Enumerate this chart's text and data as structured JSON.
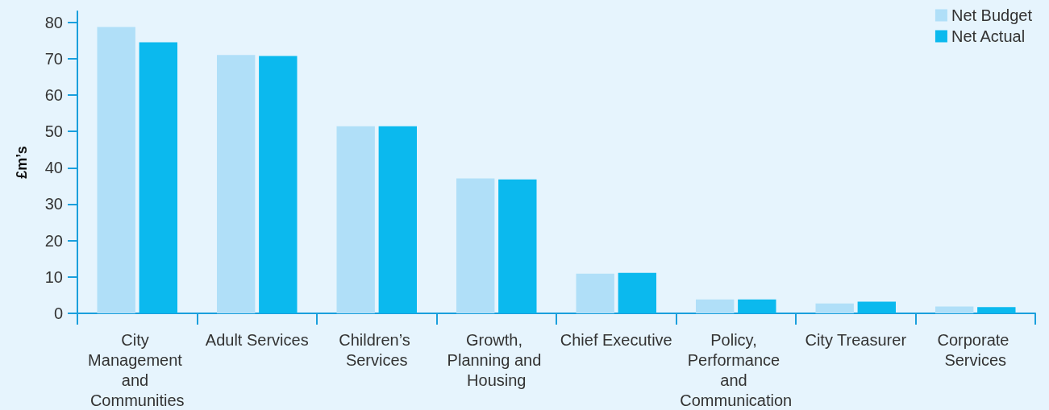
{
  "chart_data": {
    "type": "bar",
    "ylabel": "£m’s",
    "categories": [
      "City Management and Communities",
      "Adult Services",
      "Children’s Services",
      "Growth, Planning and Housing",
      "Chief Executive",
      "Policy, Performance and Communication",
      "City Treasurer",
      "Corporate Services"
    ],
    "series": [
      {
        "name": "Net Budget",
        "color": "#b0dff8",
        "values": [
          78.7,
          71.0,
          51.4,
          37.1,
          10.9,
          3.8,
          2.7,
          1.9
        ]
      },
      {
        "name": "Net Actual",
        "color": "#0bb9ee",
        "values": [
          74.5,
          70.7,
          51.4,
          36.8,
          11.1,
          3.8,
          3.2,
          1.7
        ]
      }
    ],
    "ylim": [
      0,
      83
    ],
    "yticks": [
      0,
      10,
      20,
      30,
      40,
      50,
      60,
      70,
      80
    ],
    "grid": false,
    "legend": "top right"
  }
}
